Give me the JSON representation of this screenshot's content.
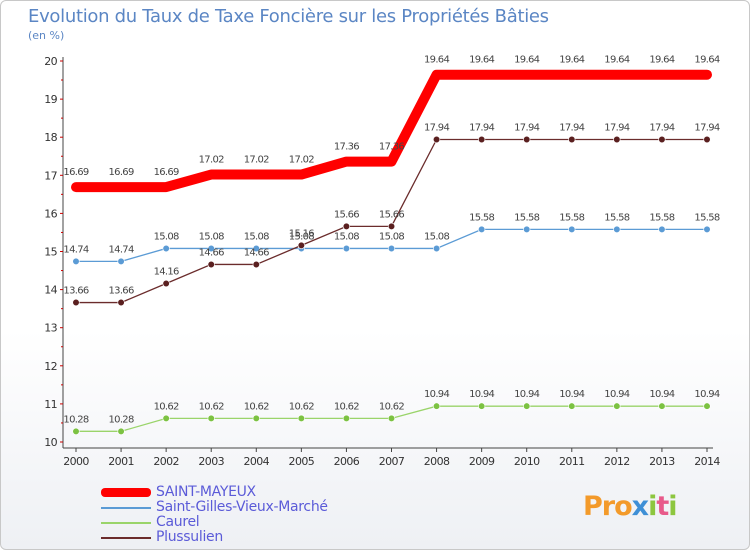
{
  "title": "Evolution du Taux de Taxe Foncière sur les Propriétés Bâties",
  "unit_label": "(en %)",
  "logo": {
    "p1": "Pro",
    "p2": "x",
    "p3": "i",
    "p4": "t",
    "p5": "i"
  },
  "chart_data": {
    "type": "line",
    "title": "Evolution du Taux de Taxe Foncière sur les Propriétés Bâties",
    "ylabel": "(en %)",
    "xlabel": "",
    "ylim": [
      10,
      20
    ],
    "grid": false,
    "legend_position": "bottom-left",
    "x": [
      2000,
      2001,
      2002,
      2003,
      2004,
      2005,
      2006,
      2007,
      2008,
      2009,
      2010,
      2011,
      2012,
      2013,
      2014
    ],
    "y_ticks": [
      10,
      11,
      12,
      13,
      14,
      15,
      16,
      17,
      18,
      19,
      20
    ],
    "series": [
      {
        "name": "SAINT-MAYEUX",
        "color": "#ff0000",
        "style": "thick",
        "values": [
          16.69,
          16.69,
          16.69,
          17.02,
          17.02,
          17.02,
          17.36,
          17.36,
          19.64,
          19.64,
          19.64,
          19.64,
          19.64,
          19.64,
          19.64
        ]
      },
      {
        "name": "Saint-Gilles-Vieux-Marché",
        "color": "#5b9bd5",
        "marker": "#5b9bd5",
        "values": [
          14.74,
          14.74,
          15.08,
          15.08,
          15.08,
          15.08,
          15.08,
          15.08,
          15.08,
          15.58,
          15.58,
          15.58,
          15.58,
          15.58,
          15.58
        ]
      },
      {
        "name": "Caurel",
        "color": "#9ad46a",
        "marker": "#7cc242",
        "values": [
          10.28,
          10.28,
          10.62,
          10.62,
          10.62,
          10.62,
          10.62,
          10.62,
          10.94,
          10.94,
          10.94,
          10.94,
          10.94,
          10.94,
          10.94
        ]
      },
      {
        "name": "Plussulien",
        "color": "#6b2c2c",
        "marker": "#5a1f1f",
        "values": [
          13.66,
          13.66,
          14.16,
          14.66,
          14.66,
          15.16,
          15.66,
          15.66,
          17.94,
          17.94,
          17.94,
          17.94,
          17.94,
          17.94,
          17.94
        ]
      }
    ]
  }
}
